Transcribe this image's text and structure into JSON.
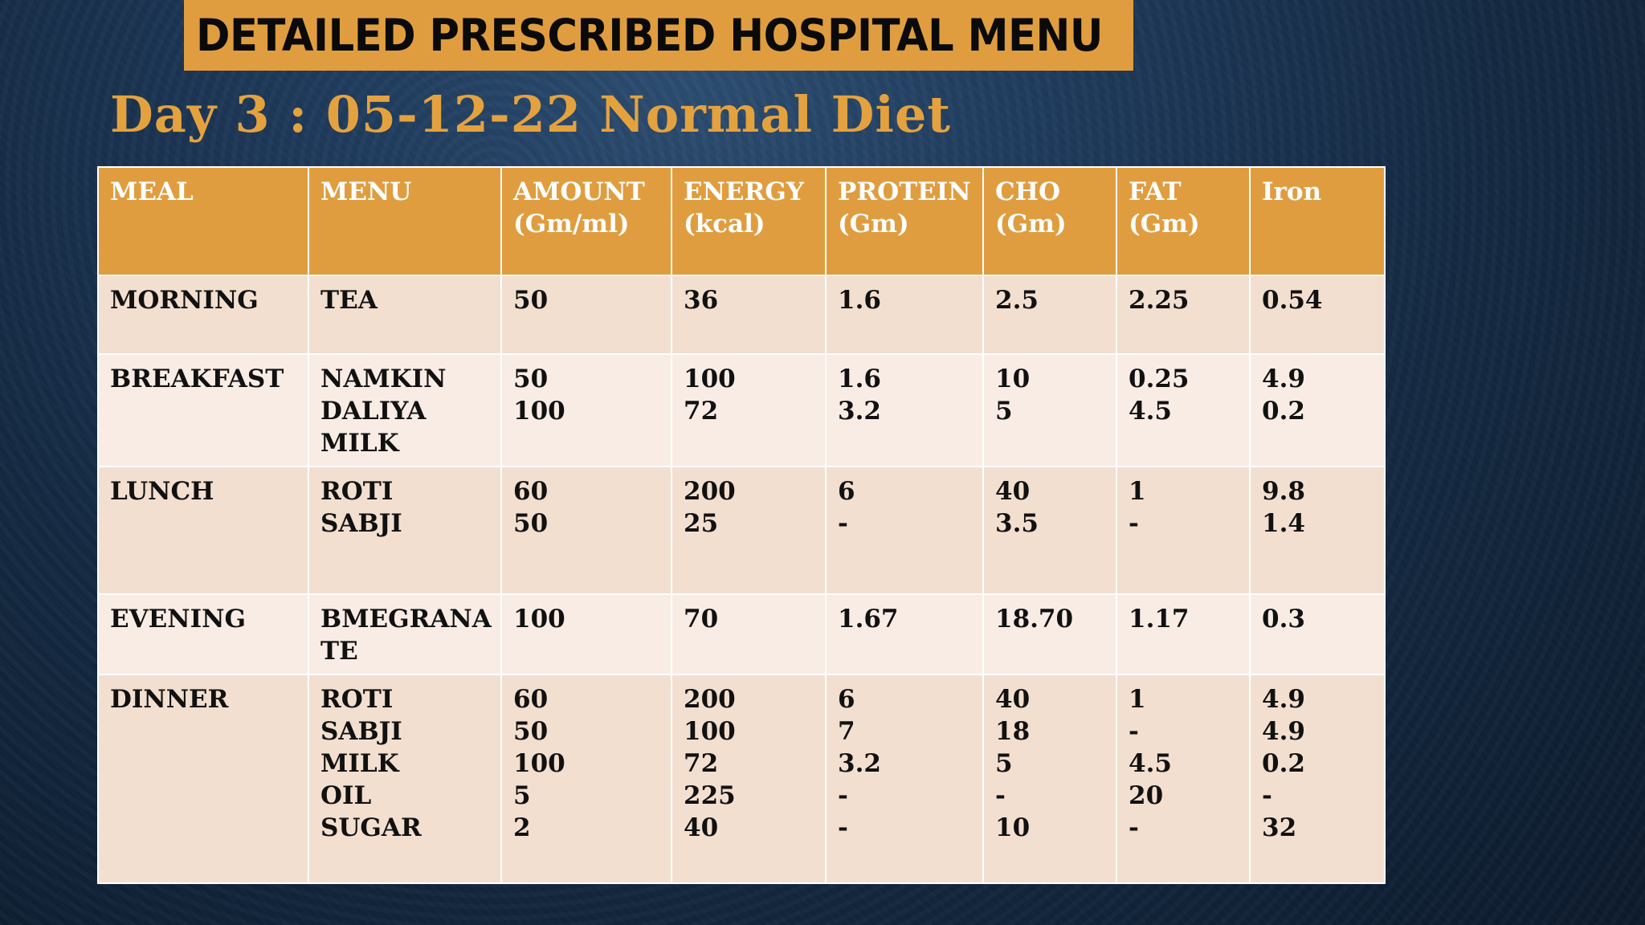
{
  "banner": {
    "title": "DETAILED PRESCRIBED HOSPITAL MENU"
  },
  "subtitle": {
    "day": "Day 3 : 05-12-22",
    "diet": "Normal Diet"
  },
  "table": {
    "headers": [
      [
        "MEAL"
      ],
      [
        "MENU"
      ],
      [
        "AMOUNT",
        "(Gm/ml)"
      ],
      [
        "ENERGY",
        "(kcal)"
      ],
      [
        "PROTEIN",
        "(Gm)"
      ],
      [
        "CHO",
        "(Gm)"
      ],
      [
        "FAT",
        "(Gm)"
      ],
      [
        "Iron"
      ]
    ],
    "rows": [
      {
        "meal": "MORNING",
        "menu": [
          "TEA"
        ],
        "amount": [
          "50"
        ],
        "energy": [
          "36"
        ],
        "protein": [
          "1.6"
        ],
        "cho": [
          "2.5"
        ],
        "fat": [
          "2.25"
        ],
        "iron": [
          "0.54"
        ]
      },
      {
        "meal": "BREAKFAST",
        "menu": [
          "NAMKIN",
          "DALIYA",
          "MILK"
        ],
        "amount": [
          "50",
          "100"
        ],
        "energy": [
          "100",
          "72"
        ],
        "protein": [
          "1.6",
          "3.2"
        ],
        "cho": [
          "10",
          "5"
        ],
        "fat": [
          "0.25",
          "4.5"
        ],
        "iron": [
          "4.9",
          "0.2"
        ]
      },
      {
        "meal": "LUNCH",
        "menu": [
          "ROTI",
          "SABJI"
        ],
        "amount": [
          "60",
          "50"
        ],
        "energy": [
          "200",
          "25"
        ],
        "protein": [
          "6",
          "-"
        ],
        "cho": [
          "40",
          "3.5"
        ],
        "fat": [
          "1",
          "-"
        ],
        "iron": [
          "9.8",
          "1.4"
        ]
      },
      {
        "meal": "EVENING",
        "menu": [
          "BMEGRANA",
          "TE"
        ],
        "amount": [
          "100"
        ],
        "energy": [
          "70"
        ],
        "protein": [
          "1.67"
        ],
        "cho": [
          "18.70"
        ],
        "fat": [
          "1.17"
        ],
        "iron": [
          "0.3"
        ]
      },
      {
        "meal": "DINNER",
        "menu": [
          "ROTI",
          "SABJI",
          "MILK",
          "OIL",
          "SUGAR"
        ],
        "amount": [
          "60",
          "50",
          "100",
          "5",
          "2"
        ],
        "energy": [
          "200",
          "100",
          "72",
          "225",
          "40"
        ],
        "protein": [
          "6",
          "7",
          "3.2",
          "-",
          "-"
        ],
        "cho": [
          "40",
          "18",
          "5",
          "-",
          "10"
        ],
        "fat": [
          "1",
          "-",
          "4.5",
          "20",
          "-"
        ],
        "iron": [
          "4.9",
          "4.9",
          "0.2",
          "-",
          "32"
        ]
      }
    ]
  },
  "colors": {
    "accent": "#e09d3f",
    "subtitle": "#e4a23f",
    "row_dark": "#f2dfcf",
    "row_light": "#f8ece5",
    "background": "#1e3a5b"
  }
}
